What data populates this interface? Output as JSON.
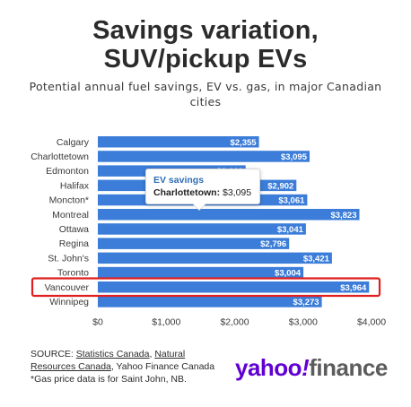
{
  "chart_data": {
    "type": "bar",
    "orientation": "horizontal",
    "title_line1": "Savings variation,",
    "title_line2": "SUV/pickup EVs",
    "subtitle": "Potential annual fuel savings, EV vs. gas, in major Canadian cities",
    "categories": [
      "Calgary",
      "Charlottetown",
      "Edmonton",
      "Halifax",
      "Moncton*",
      "Montreal",
      "Ottawa",
      "Regina",
      "St. John's",
      "Toronto",
      "Vancouver",
      "Winnipeg"
    ],
    "values": [
      2355,
      3095,
      2160,
      2902,
      3061,
      3823,
      3041,
      2796,
      3421,
      3004,
      3964,
      3273
    ],
    "data_labels": [
      "$2,355",
      "$3,095",
      "$2,160",
      "$2,902",
      "$3,061",
      "$3,823",
      "$3,041",
      "$2,796",
      "$3,421",
      "$3,004",
      "$3,964",
      "$3,273"
    ],
    "xlim": [
      0,
      4000
    ],
    "x_ticks": [
      0,
      1000,
      2000,
      3000,
      4000
    ],
    "x_tick_labels": [
      "$0",
      "$1,000",
      "$2,000",
      "$3,000",
      "$4,000"
    ],
    "bar_color": "#3b7dd8",
    "highlight": {
      "category": "Vancouver",
      "color": "#e02020"
    },
    "grid": false,
    "legend": "none",
    "tooltip": {
      "title": "EV savings",
      "category": "Charlottetown",
      "value": "$3,095"
    }
  },
  "footer": {
    "source_prefix": "SOURCE: ",
    "source_link1": "Statistics Canada",
    "source_sep1": ", ",
    "source_link2": "Natural Resources Canada",
    "source_rest": ", Yahoo Finance Canada",
    "note": "*Gas price data is for Saint John, NB."
  },
  "logo": {
    "part1": "yahoo",
    "part2": "!",
    "part3": "finance",
    "brand_color": "#6001d2"
  }
}
